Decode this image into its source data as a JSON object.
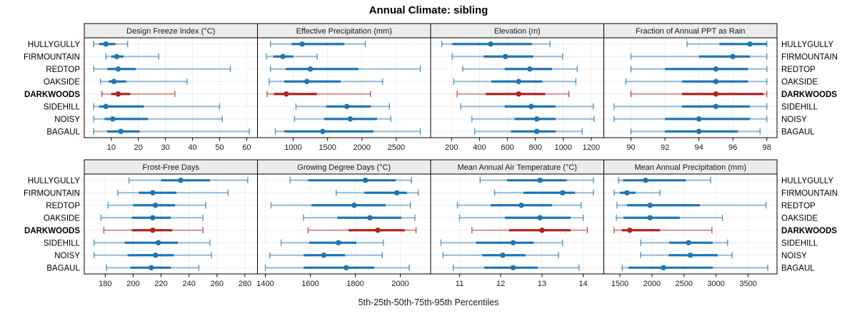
{
  "title": "Annual Climate: sibling",
  "xlab": "5th-25th-50th-75th-95th Percentiles",
  "sites": [
    "HULLYGULLY",
    "FIRMOUNTAIN",
    "REDTOP",
    "OAKSIDE",
    "DARKWOODS",
    "SIDEHILL",
    "NOISY",
    "BAGAUL"
  ],
  "highlight_site": "DARKWOODS",
  "colors": {
    "normal": "#1f77b4",
    "highlight": "#b22222",
    "strip_bg": "#ececec",
    "grid": "#c9c9c9",
    "border": "#000000",
    "text": "#1a1a1a"
  },
  "chart_data": {
    "type": "percentile-dotplot",
    "title": "Annual Climate: sibling",
    "xlabel": "5th-25th-50th-75th-95th Percentiles",
    "percentile_labels": [
      "5th",
      "25th",
      "50th",
      "75th",
      "95th"
    ],
    "rows": [
      "HULLYGULLY",
      "FIRMOUNTAIN",
      "REDTOP",
      "OAKSIDE",
      "DARKWOODS",
      "SIDEHILL",
      "NOISY",
      "BAGAUL"
    ],
    "highlight_row": "DARKWOODS",
    "grid": "dotted",
    "layout": "2x4 lattice, site labels on both sides, top row has its own x axes",
    "panels": [
      {
        "title": "Design Freeze Index (°C)",
        "xlim": [
          0,
          64
        ],
        "ticks": [
          10,
          20,
          30,
          40,
          50,
          60
        ],
        "values": [
          [
            3.5,
            5.5,
            8,
            11.5,
            16
          ],
          [
            8,
            10,
            12,
            14.5,
            27.5
          ],
          [
            3.5,
            8.5,
            12.5,
            19,
            54
          ],
          [
            6,
            9,
            11,
            15.5,
            38
          ],
          [
            6.5,
            10,
            12.5,
            17,
            33.5
          ],
          [
            3.5,
            5.5,
            8,
            22,
            50
          ],
          [
            3.5,
            7.5,
            10.5,
            23.5,
            51
          ],
          [
            3.5,
            8.5,
            13.5,
            20.5,
            61
          ]
        ]
      },
      {
        "title": "Effective Precipitation (mm)",
        "xlim": [
          480,
          3000
        ],
        "ticks": [
          1000,
          1500,
          2000,
          2500
        ],
        "values": [
          [
            670,
            975,
            1130,
            1745,
            2050
          ],
          [
            610,
            710,
            850,
            1000,
            1350
          ],
          [
            670,
            890,
            1250,
            1950,
            2850
          ],
          [
            650,
            870,
            1200,
            1690,
            2300
          ],
          [
            620,
            720,
            900,
            1345,
            2125
          ],
          [
            1040,
            1480,
            1780,
            2130,
            2400
          ],
          [
            1020,
            1450,
            1830,
            2220,
            2420
          ],
          [
            740,
            870,
            1430,
            2170,
            2850
          ]
        ]
      },
      {
        "title": "Elevation (m)",
        "xlim": [
          50,
          1290
        ],
        "ticks": [
          200,
          400,
          600,
          800,
          1000,
          1200
        ],
        "values": [
          [
            130,
            205,
            480,
            775,
            905
          ],
          [
            205,
            430,
            585,
            785,
            995
          ],
          [
            280,
            580,
            760,
            920,
            1100
          ],
          [
            215,
            485,
            680,
            850,
            1090
          ],
          [
            240,
            445,
            680,
            870,
            1040
          ],
          [
            265,
            580,
            770,
            945,
            1215
          ],
          [
            345,
            650,
            810,
            945,
            1220
          ],
          [
            365,
            625,
            810,
            945,
            1135
          ]
        ]
      },
      {
        "title": "Fraction of Annual PPT as Rain",
        "xlim": [
          88.4,
          98.6
        ],
        "ticks": [
          90,
          92,
          94,
          96,
          98
        ],
        "values": [
          [
            93.3,
            95.2,
            97,
            98,
            98
          ],
          [
            90,
            94,
            96,
            97,
            98
          ],
          [
            90,
            92,
            95,
            96.9,
            98
          ],
          [
            89.7,
            93,
            95,
            96.9,
            98
          ],
          [
            90,
            93,
            95,
            97.8,
            98
          ],
          [
            89,
            93,
            95,
            97,
            98
          ],
          [
            89,
            92,
            94,
            97,
            98
          ],
          [
            90,
            92,
            94,
            96.3,
            97.6
          ]
        ]
      },
      {
        "title": "Frost-Free Days",
        "xlim": [
          165,
          289
        ],
        "ticks": [
          180,
          200,
          220,
          240,
          260,
          280
        ],
        "values": [
          [
            197,
            220,
            234,
            255,
            282
          ],
          [
            189,
            204,
            214,
            231,
            268
          ],
          [
            182,
            200,
            216,
            230,
            252
          ],
          [
            177,
            199,
            214,
            227,
            250
          ],
          [
            179,
            199,
            214,
            228,
            250
          ],
          [
            172,
            194,
            218,
            232,
            255
          ],
          [
            172,
            196,
            216,
            229,
            256
          ],
          [
            181,
            198,
            213,
            227,
            247
          ]
        ]
      },
      {
        "title": "Growing Degree Days (°C)",
        "xlim": [
          1365,
          2135
        ],
        "ticks": [
          1400,
          1600,
          1800,
          2000
        ],
        "values": [
          [
            1510,
            1590,
            1845,
            1980,
            2050
          ],
          [
            1715,
            1840,
            1985,
            2030,
            2080
          ],
          [
            1425,
            1605,
            1795,
            1935,
            2045
          ],
          [
            1570,
            1720,
            1865,
            2005,
            2065
          ],
          [
            1590,
            1770,
            1900,
            2020,
            2070
          ],
          [
            1470,
            1595,
            1725,
            1805,
            1925
          ],
          [
            1420,
            1570,
            1660,
            1755,
            1920
          ],
          [
            1400,
            1570,
            1760,
            1885,
            2040
          ]
        ]
      },
      {
        "title": "Mean Annual Air Temperature (°C)",
        "xlim": [
          10.3,
          14.5
        ],
        "ticks": [
          11,
          12,
          13,
          14
        ],
        "values": [
          [
            11.5,
            12.15,
            12.95,
            13.6,
            14.25
          ],
          [
            11.85,
            12.55,
            13.5,
            13.8,
            14.25
          ],
          [
            10.95,
            11.75,
            12.5,
            13.25,
            13.95
          ],
          [
            11.0,
            12.1,
            12.95,
            13.7,
            14.0
          ],
          [
            11.3,
            12.2,
            13.0,
            13.7,
            14.1
          ],
          [
            10.55,
            11.4,
            12.3,
            12.8,
            13.5
          ],
          [
            10.6,
            11.55,
            12.05,
            12.6,
            13.4
          ],
          [
            10.85,
            11.6,
            12.3,
            12.9,
            13.9
          ]
        ]
      },
      {
        "title": "Mean Annual Precipitation (mm)",
        "xlim": [
          1250,
          3950
        ],
        "ticks": [
          1500,
          2000,
          2500,
          3000,
          3500
        ],
        "values": [
          [
            1480,
            1550,
            1900,
            2525,
            2915
          ],
          [
            1410,
            1500,
            1610,
            1745,
            2125
          ],
          [
            1455,
            1610,
            1970,
            2750,
            3780
          ],
          [
            1445,
            1555,
            1970,
            2435,
            3100
          ],
          [
            1410,
            1530,
            1655,
            2125,
            2935
          ],
          [
            1825,
            2270,
            2570,
            2950,
            3180
          ],
          [
            1825,
            2260,
            2600,
            3025,
            3250
          ],
          [
            1535,
            1635,
            2180,
            2950,
            3805
          ]
        ]
      }
    ]
  }
}
